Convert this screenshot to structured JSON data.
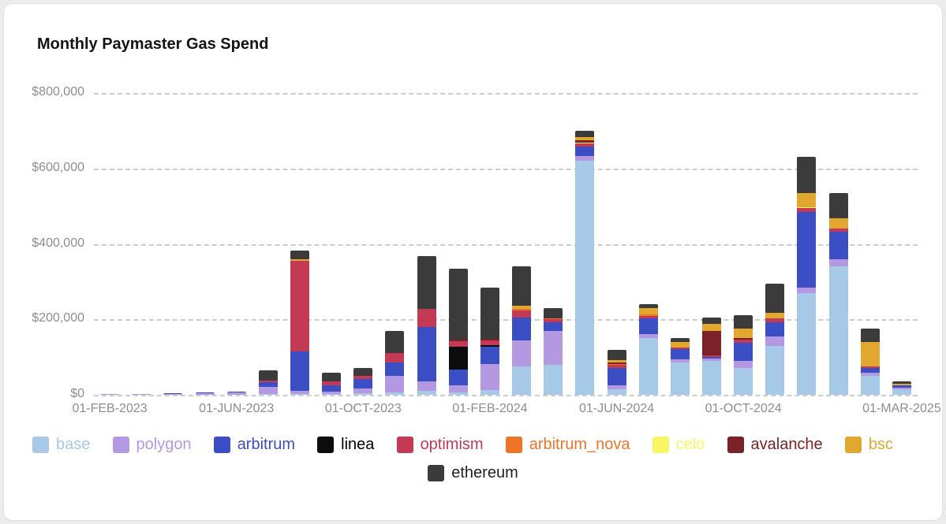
{
  "chart_data": {
    "type": "bar",
    "stacked": true,
    "title": "Monthly Paymaster Gas Spend",
    "xlabel": "",
    "ylabel": "",
    "ylim": [
      0,
      800000
    ],
    "grid": "dashed-horizontal",
    "legend_position": "bottom",
    "y_ticks": [
      0,
      200000,
      400000,
      600000,
      800000
    ],
    "y_tick_labels": [
      "$0",
      "$200,000",
      "$400,000",
      "$600,000",
      "$800,000"
    ],
    "categories": [
      "Feb 2023",
      "Mar 2023",
      "Apr 2023",
      "May 2023",
      "Jun 2023",
      "Jul 2023",
      "Aug 2023",
      "Sep 2023",
      "Oct 2023",
      "Nov 2023",
      "Dec 2023",
      "Jan 2024",
      "Feb 2024",
      "Mar 2024",
      "Apr 2024",
      "May 2024",
      "Jun 2024",
      "Jul 2024",
      "Aug 2024",
      "Sep 2024",
      "Oct 2024",
      "Nov 2024",
      "Dec 2024",
      "Jan 2025",
      "Feb 2025",
      "Mar 2025"
    ],
    "x_tick_labels": [
      {
        "index": 0,
        "label": "01-FEB-2023"
      },
      {
        "index": 4,
        "label": "01-JUN-2023"
      },
      {
        "index": 8,
        "label": "01-OCT-2023"
      },
      {
        "index": 12,
        "label": "01-FEB-2024"
      },
      {
        "index": 16,
        "label": "01-JUN-2024"
      },
      {
        "index": 20,
        "label": "01-OCT-2024"
      },
      {
        "index": 25,
        "label": "01-MAR-2025"
      }
    ],
    "series": [
      {
        "name": "base",
        "color": "#a6c9e8",
        "values": [
          0,
          0,
          0,
          0,
          0,
          1000,
          2000,
          2000,
          4000,
          6000,
          10000,
          6000,
          12000,
          75000,
          80000,
          620000,
          15000,
          150000,
          85000,
          90000,
          70000,
          130000,
          270000,
          340000,
          50000,
          15000
        ]
      },
      {
        "name": "polygon",
        "color": "#b598e2",
        "values": [
          2000,
          2000,
          3000,
          4000,
          6000,
          20000,
          8000,
          6000,
          12000,
          45000,
          25000,
          20000,
          70000,
          70000,
          90000,
          12000,
          10000,
          10000,
          8000,
          5000,
          20000,
          25000,
          15000,
          20000,
          8000,
          4000
        ]
      },
      {
        "name": "arbitrum",
        "color": "#3c4ec4",
        "values": [
          0,
          500,
          1000,
          1500,
          2000,
          12000,
          105000,
          18000,
          25000,
          35000,
          145000,
          40000,
          45000,
          60000,
          22000,
          25000,
          45000,
          42000,
          28000,
          6000,
          48000,
          38000,
          200000,
          72000,
          12000,
          5000
        ]
      },
      {
        "name": "linea",
        "color": "#0d0d0d",
        "label_color": "#000000",
        "values": [
          0,
          0,
          0,
          0,
          0,
          0,
          0,
          0,
          0,
          0,
          0,
          62000,
          4000,
          0,
          0,
          0,
          0,
          0,
          0,
          0,
          0,
          0,
          0,
          0,
          0,
          0
        ]
      },
      {
        "name": "optimism",
        "color": "#c43a55",
        "values": [
          0,
          0,
          0,
          0,
          0,
          5000,
          240000,
          10000,
          9000,
          25000,
          48000,
          15000,
          14000,
          18000,
          9000,
          10000,
          9000,
          7000,
          5000,
          3000,
          8000,
          10000,
          9000,
          9000,
          5000,
          1500
        ]
      },
      {
        "name": "arbitrum_nova",
        "color": "#ef7428",
        "values": [
          0,
          0,
          0,
          0,
          0,
          0,
          0,
          0,
          0,
          0,
          0,
          0,
          0,
          4000,
          2000,
          0,
          2000,
          3000,
          0,
          0,
          0,
          0,
          0,
          0,
          0,
          0
        ]
      },
      {
        "name": "celo",
        "color": "#f8f763",
        "values": [
          0,
          0,
          0,
          0,
          0,
          0,
          0,
          0,
          0,
          0,
          0,
          0,
          0,
          0,
          0,
          2000,
          0,
          0,
          0,
          0,
          0,
          0,
          4000,
          0,
          0,
          0
        ]
      },
      {
        "name": "avalanche",
        "color": "#7a2228",
        "values": [
          0,
          0,
          0,
          0,
          0,
          0,
          0,
          0,
          0,
          0,
          0,
          4000,
          4000,
          0,
          0,
          5000,
          5000,
          0,
          0,
          65000,
          5000,
          0,
          0,
          0,
          0,
          0
        ]
      },
      {
        "name": "bsc",
        "color": "#e2a72e",
        "values": [
          0,
          0,
          0,
          0,
          0,
          0,
          5000,
          0,
          0,
          0,
          0,
          0,
          0,
          8000,
          0,
          10000,
          6000,
          18000,
          14000,
          19000,
          24000,
          14000,
          36000,
          26000,
          64000,
          4000
        ]
      },
      {
        "name": "ethereum",
        "color": "#3b3b3b",
        "label_color": "#1f1f1f",
        "values": [
          0,
          0,
          0,
          0,
          0,
          27000,
          23000,
          22000,
          20000,
          59000,
          140000,
          188000,
          136000,
          105000,
          27000,
          16000,
          28000,
          10000,
          10000,
          17000,
          35000,
          78000,
          96000,
          68000,
          36000,
          6000
        ]
      }
    ]
  }
}
